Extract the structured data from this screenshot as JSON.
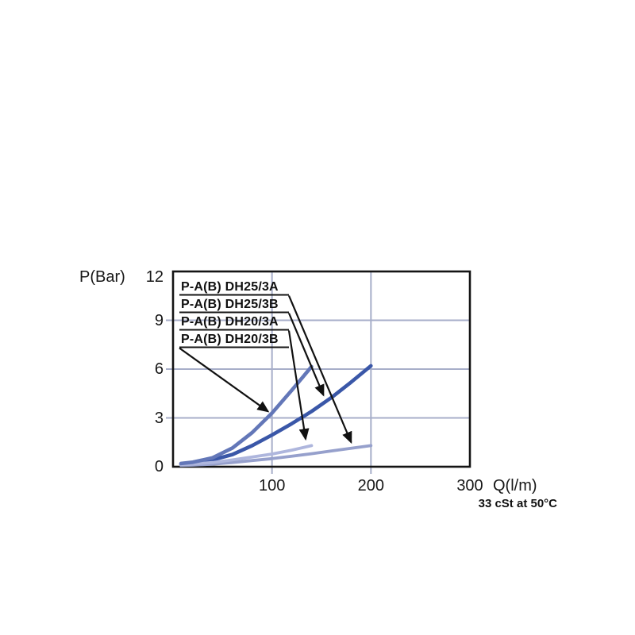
{
  "page": {
    "background": "#ffffff"
  },
  "axes": {
    "y_title": "P(Bar)",
    "x_title": "Q(l/m)",
    "note": "33 cSt at 50°C"
  },
  "chart_data": {
    "type": "line",
    "title": "",
    "xlabel": "Q(l/m)",
    "ylabel": "P(Bar)",
    "footnote": "33 cSt at 50°C",
    "xlim": [
      0,
      300
    ],
    "ylim": [
      0,
      12
    ],
    "x_ticks": [
      100,
      200,
      300
    ],
    "y_ticks": [
      12,
      9,
      6,
      3,
      0
    ],
    "grid": true,
    "colors": {
      "grid": "#a7aec9",
      "border": "#141414",
      "arrow": "#111111"
    },
    "series": [
      {
        "name": "P-A(B) DH25/3A",
        "color": "#96a0cc",
        "max_flow_lpm": 200,
        "points": [
          [
            8,
            0.08
          ],
          [
            20,
            0.1
          ],
          [
            40,
            0.16
          ],
          [
            60,
            0.26
          ],
          [
            80,
            0.38
          ],
          [
            100,
            0.5
          ],
          [
            120,
            0.65
          ],
          [
            140,
            0.8
          ],
          [
            160,
            0.97
          ],
          [
            180,
            1.13
          ],
          [
            200,
            1.3
          ]
        ]
      },
      {
        "name": "P-A(B) DH25/3B",
        "color": "#3a57a8",
        "max_flow_lpm": 200,
        "points": [
          [
            8,
            0.15
          ],
          [
            20,
            0.22
          ],
          [
            40,
            0.42
          ],
          [
            60,
            0.75
          ],
          [
            80,
            1.3
          ],
          [
            100,
            1.95
          ],
          [
            120,
            2.65
          ],
          [
            140,
            3.4
          ],
          [
            160,
            4.25
          ],
          [
            180,
            5.2
          ],
          [
            200,
            6.2
          ]
        ]
      },
      {
        "name": "P-A(B) DH20/3A",
        "color": "#aeb6dd",
        "max_flow_lpm": 140,
        "points": [
          [
            8,
            0.12
          ],
          [
            20,
            0.16
          ],
          [
            40,
            0.26
          ],
          [
            60,
            0.42
          ],
          [
            80,
            0.6
          ],
          [
            100,
            0.78
          ],
          [
            120,
            1.02
          ],
          [
            140,
            1.3
          ]
        ]
      },
      {
        "name": "P-A(B) DH20/3B",
        "color": "#6377b8",
        "max_flow_lpm": 140,
        "points": [
          [
            8,
            0.2
          ],
          [
            20,
            0.28
          ],
          [
            40,
            0.55
          ],
          [
            60,
            1.15
          ],
          [
            80,
            2.1
          ],
          [
            100,
            3.3
          ],
          [
            120,
            4.7
          ],
          [
            140,
            6.15
          ]
        ]
      }
    ],
    "legend": {
      "position": "top-left-inside",
      "items": [
        {
          "label": "P-A(B) DH25/3A",
          "series": "P-A(B) DH25/3A",
          "arrow_from": "right",
          "target": [
            180,
            1.5
          ]
        },
        {
          "label": "P-A(B) DH25/3B",
          "series": "P-A(B) DH25/3B",
          "arrow_from": "right",
          "target": [
            152,
            4.4
          ]
        },
        {
          "label": "P-A(B) DH20/3A",
          "series": "P-A(B) DH20/3A",
          "arrow_from": "right",
          "target": [
            134,
            1.7
          ]
        },
        {
          "label": "P-A(B) DH20/3B",
          "series": "P-A(B) DH20/3B",
          "arrow_from": "left",
          "target": [
            96,
            3.4
          ]
        }
      ]
    }
  }
}
